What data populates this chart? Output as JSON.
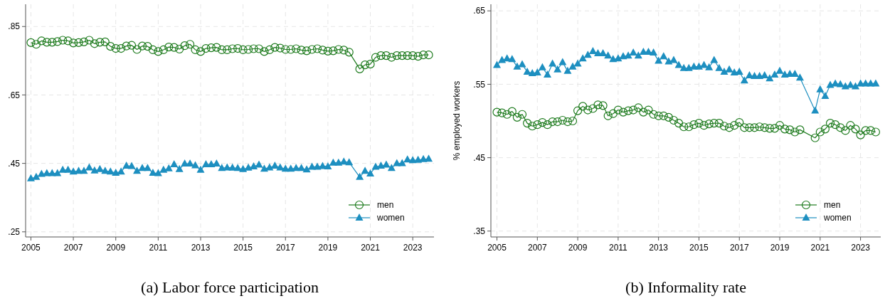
{
  "chart_data": [
    {
      "type": "line",
      "title": "(a) Labor force participation",
      "marker": "circle",
      "grid": true,
      "legend": "bottom right",
      "xlim": [
        2004.75,
        2024.0
      ],
      "xticks": [
        2005,
        2007,
        2009,
        2011,
        2013,
        2015,
        2017,
        2019,
        2021,
        2023
      ],
      "ylim": [
        0.235,
        0.915
      ],
      "yticks": [
        {
          "value": 0.25,
          "label": ".25"
        },
        {
          "value": 0.45,
          "label": ".45"
        },
        {
          "value": 0.65,
          "label": ".65"
        },
        {
          "value": 0.85,
          "label": ".85"
        }
      ],
      "series": [
        {
          "name": "men",
          "color": "#1e7b1e",
          "marker": "circle",
          "x": [
            2005,
            2005.25,
            2005.5,
            2005.75,
            2006,
            2006.25,
            2006.5,
            2006.75,
            2007,
            2007.25,
            2007.5,
            2007.75,
            2008,
            2008.25,
            2008.5,
            2008.75,
            2009,
            2009.25,
            2009.5,
            2009.75,
            2010,
            2010.25,
            2010.5,
            2010.75,
            2011,
            2011.25,
            2011.5,
            2011.75,
            2012,
            2012.25,
            2012.5,
            2012.75,
            2013,
            2013.25,
            2013.5,
            2013.75,
            2014,
            2014.25,
            2014.5,
            2014.75,
            2015,
            2015.25,
            2015.5,
            2015.75,
            2016,
            2016.25,
            2016.5,
            2016.75,
            2017,
            2017.25,
            2017.5,
            2017.75,
            2018,
            2018.25,
            2018.5,
            2018.75,
            2019,
            2019.25,
            2019.5,
            2019.75,
            2020,
            2020.5,
            2020.75,
            2021,
            2021.25,
            2021.5,
            2021.75,
            2022,
            2022.25,
            2022.5,
            2022.75,
            2023,
            2023.25,
            2023.5,
            2023.75
          ],
          "values": [
            0.803,
            0.798,
            0.808,
            0.804,
            0.804,
            0.806,
            0.81,
            0.808,
            0.802,
            0.803,
            0.805,
            0.81,
            0.8,
            0.804,
            0.805,
            0.792,
            0.786,
            0.786,
            0.793,
            0.795,
            0.783,
            0.793,
            0.792,
            0.782,
            0.777,
            0.782,
            0.79,
            0.789,
            0.784,
            0.794,
            0.798,
            0.782,
            0.777,
            0.786,
            0.788,
            0.789,
            0.782,
            0.782,
            0.785,
            0.786,
            0.782,
            0.783,
            0.785,
            0.785,
            0.777,
            0.782,
            0.789,
            0.787,
            0.783,
            0.783,
            0.785,
            0.781,
            0.779,
            0.783,
            0.785,
            0.781,
            0.778,
            0.779,
            0.783,
            0.781,
            0.775,
            0.726,
            0.738,
            0.74,
            0.76,
            0.765,
            0.765,
            0.76,
            0.765,
            0.765,
            0.765,
            0.765,
            0.763,
            0.767,
            0.767
          ]
        },
        {
          "name": "women",
          "color": "#1d8fc0",
          "marker": "triangle",
          "x": [
            2005,
            2005.25,
            2005.5,
            2005.75,
            2006,
            2006.25,
            2006.5,
            2006.75,
            2007,
            2007.25,
            2007.5,
            2007.75,
            2008,
            2008.25,
            2008.5,
            2008.75,
            2009,
            2009.25,
            2009.5,
            2009.75,
            2010,
            2010.25,
            2010.5,
            2010.75,
            2011,
            2011.25,
            2011.5,
            2011.75,
            2012,
            2012.25,
            2012.5,
            2012.75,
            2013,
            2013.25,
            2013.5,
            2013.75,
            2014,
            2014.25,
            2014.5,
            2014.75,
            2015,
            2015.25,
            2015.5,
            2015.75,
            2016,
            2016.25,
            2016.5,
            2016.75,
            2017,
            2017.25,
            2017.5,
            2017.75,
            2018,
            2018.25,
            2018.5,
            2018.75,
            2019,
            2019.25,
            2019.5,
            2019.75,
            2020,
            2020.5,
            2020.75,
            2021,
            2021.25,
            2021.5,
            2021.75,
            2022,
            2022.25,
            2022.5,
            2022.75,
            2023,
            2023.25,
            2023.5,
            2023.75
          ],
          "values": [
            0.406,
            0.41,
            0.419,
            0.421,
            0.421,
            0.421,
            0.431,
            0.431,
            0.426,
            0.428,
            0.428,
            0.438,
            0.429,
            0.433,
            0.428,
            0.426,
            0.422,
            0.426,
            0.443,
            0.442,
            0.428,
            0.436,
            0.436,
            0.422,
            0.421,
            0.431,
            0.435,
            0.447,
            0.433,
            0.449,
            0.449,
            0.444,
            0.431,
            0.447,
            0.447,
            0.449,
            0.436,
            0.438,
            0.437,
            0.436,
            0.433,
            0.437,
            0.441,
            0.446,
            0.434,
            0.438,
            0.443,
            0.438,
            0.434,
            0.434,
            0.436,
            0.436,
            0.432,
            0.44,
            0.44,
            0.442,
            0.441,
            0.452,
            0.452,
            0.455,
            0.453,
            0.41,
            0.428,
            0.42,
            0.44,
            0.443,
            0.446,
            0.436,
            0.45,
            0.45,
            0.461,
            0.459,
            0.46,
            0.462,
            0.463
          ]
        }
      ]
    },
    {
      "type": "line",
      "title": "(b) Informality rate",
      "ylabel": "% employed workers",
      "marker": "circle",
      "grid": true,
      "legend": "bottom right",
      "xlim": [
        2004.7,
        2024.0
      ],
      "xticks": [
        2005,
        2007,
        2009,
        2011,
        2013,
        2015,
        2017,
        2019,
        2021,
        2023
      ],
      "ylim": [
        0.342,
        0.659
      ],
      "yticks": [
        {
          "value": 0.35,
          "label": ".35"
        },
        {
          "value": 0.45,
          "label": ".45"
        },
        {
          "value": 0.55,
          "label": ".55"
        },
        {
          "value": 0.65,
          "label": ".65"
        }
      ],
      "series": [
        {
          "name": "men",
          "color": "#1e7b1e",
          "marker": "circle",
          "x": [
            2005,
            2005.25,
            2005.5,
            2005.75,
            2006,
            2006.25,
            2006.5,
            2006.75,
            2007,
            2007.25,
            2007.5,
            2007.75,
            2008,
            2008.25,
            2008.5,
            2008.75,
            2009,
            2009.25,
            2009.5,
            2009.75,
            2010,
            2010.25,
            2010.5,
            2010.75,
            2011,
            2011.25,
            2011.5,
            2011.75,
            2012,
            2012.25,
            2012.5,
            2012.75,
            2013,
            2013.25,
            2013.5,
            2013.75,
            2014,
            2014.25,
            2014.5,
            2014.75,
            2015,
            2015.25,
            2015.5,
            2015.75,
            2016,
            2016.25,
            2016.5,
            2016.75,
            2017,
            2017.25,
            2017.5,
            2017.75,
            2018,
            2018.25,
            2018.5,
            2018.75,
            2019,
            2019.25,
            2019.5,
            2019.75,
            2020,
            2020.75,
            2021,
            2021.25,
            2021.5,
            2021.75,
            2022,
            2022.25,
            2022.5,
            2022.75,
            2023,
            2023.25,
            2023.5,
            2023.75
          ],
          "values": [
            0.512,
            0.511,
            0.509,
            0.513,
            0.505,
            0.509,
            0.497,
            0.493,
            0.495,
            0.498,
            0.495,
            0.499,
            0.499,
            0.501,
            0.499,
            0.5,
            0.514,
            0.52,
            0.515,
            0.517,
            0.522,
            0.521,
            0.507,
            0.51,
            0.515,
            0.512,
            0.514,
            0.515,
            0.518,
            0.512,
            0.515,
            0.509,
            0.507,
            0.507,
            0.505,
            0.501,
            0.497,
            0.492,
            0.492,
            0.495,
            0.497,
            0.494,
            0.496,
            0.497,
            0.497,
            0.493,
            0.491,
            0.494,
            0.498,
            0.491,
            0.491,
            0.491,
            0.492,
            0.491,
            0.49,
            0.49,
            0.494,
            0.489,
            0.488,
            0.485,
            0.488,
            0.477,
            0.485,
            0.489,
            0.497,
            0.495,
            0.491,
            0.487,
            0.494,
            0.489,
            0.481,
            0.487,
            0.487,
            0.485
          ]
        },
        {
          "name": "women",
          "color": "#1d8fc0",
          "marker": "triangle",
          "x": [
            2005,
            2005.25,
            2005.5,
            2005.75,
            2006,
            2006.25,
            2006.5,
            2006.75,
            2007,
            2007.25,
            2007.5,
            2007.75,
            2008,
            2008.25,
            2008.5,
            2008.75,
            2009,
            2009.25,
            2009.5,
            2009.75,
            2010,
            2010.25,
            2010.5,
            2010.75,
            2011,
            2011.25,
            2011.5,
            2011.75,
            2012,
            2012.25,
            2012.5,
            2012.75,
            2013,
            2013.25,
            2013.5,
            2013.75,
            2014,
            2014.25,
            2014.5,
            2014.75,
            2015,
            2015.25,
            2015.5,
            2015.75,
            2016,
            2016.25,
            2016.5,
            2016.75,
            2017,
            2017.25,
            2017.5,
            2017.75,
            2018,
            2018.25,
            2018.5,
            2018.75,
            2019,
            2019.25,
            2019.5,
            2019.75,
            2020,
            2020.75,
            2021,
            2021.25,
            2021.5,
            2021.75,
            2022,
            2022.25,
            2022.5,
            2022.75,
            2023,
            2023.25,
            2023.5,
            2023.75
          ],
          "values": [
            0.576,
            0.583,
            0.585,
            0.584,
            0.574,
            0.577,
            0.567,
            0.565,
            0.566,
            0.573,
            0.563,
            0.578,
            0.57,
            0.58,
            0.568,
            0.574,
            0.578,
            0.585,
            0.59,
            0.595,
            0.592,
            0.592,
            0.589,
            0.584,
            0.585,
            0.588,
            0.589,
            0.593,
            0.589,
            0.594,
            0.594,
            0.593,
            0.582,
            0.588,
            0.581,
            0.583,
            0.576,
            0.572,
            0.572,
            0.574,
            0.574,
            0.576,
            0.573,
            0.583,
            0.572,
            0.567,
            0.57,
            0.566,
            0.567,
            0.555,
            0.562,
            0.561,
            0.561,
            0.562,
            0.558,
            0.563,
            0.568,
            0.563,
            0.564,
            0.564,
            0.559,
            0.514,
            0.543,
            0.534,
            0.549,
            0.551,
            0.55,
            0.547,
            0.549,
            0.547,
            0.551,
            0.551,
            0.551,
            0.551
          ]
        }
      ]
    }
  ]
}
